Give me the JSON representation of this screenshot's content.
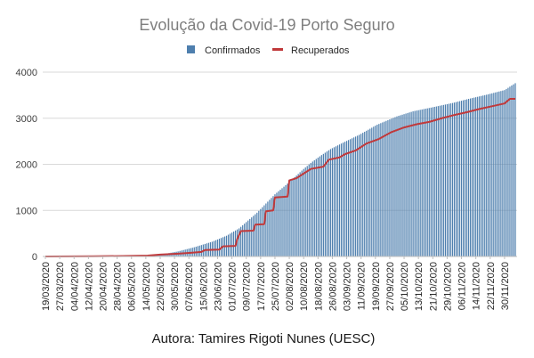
{
  "chart_data": {
    "type": "bar",
    "title": "Evolução da Covid-19 Porto Seguro",
    "legend_position": "top",
    "ylim": [
      0,
      4000
    ],
    "y_ticks": [
      "0",
      "1000",
      "2000",
      "3000",
      "4000"
    ],
    "x_start": "19/03/2020",
    "x_end": "06/12/2020",
    "x_tick_labels": [
      "19/03/2020",
      "27/03/2020",
      "04/04/2020",
      "12/04/2020",
      "20/04/2020",
      "28/04/2020",
      "06/05/2020",
      "14/05/2020",
      "22/05/2020",
      "30/05/2020",
      "07/06/2020",
      "15/06/2020",
      "23/06/2020",
      "01/07/2020",
      "09/07/2020",
      "17/07/2020",
      "25/07/2020",
      "02/08/2020",
      "10/08/2020",
      "18/08/2020",
      "26/08/2020",
      "03/09/2020",
      "11/09/2020",
      "19/09/2020",
      "27/09/2020",
      "05/10/2020",
      "13/10/2020",
      "21/10/2020",
      "29/10/2020",
      "06/11/2020",
      "14/11/2020",
      "22/11/2020",
      "30/11/2020"
    ],
    "series": [
      {
        "name": "Confirmados",
        "kind": "bar",
        "color": "#4e7fae",
        "points": [
          [
            "19/03/2020",
            0
          ],
          [
            "15/04/2020",
            3
          ],
          [
            "01/05/2020",
            10
          ],
          [
            "15/05/2020",
            30
          ],
          [
            "25/05/2020",
            60
          ],
          [
            "01/06/2020",
            110
          ],
          [
            "10/06/2020",
            200
          ],
          [
            "20/06/2020",
            320
          ],
          [
            "28/06/2020",
            450
          ],
          [
            "05/07/2020",
            610
          ],
          [
            "10/07/2020",
            780
          ],
          [
            "15/07/2020",
            950
          ],
          [
            "20/07/2020",
            1150
          ],
          [
            "25/07/2020",
            1350
          ],
          [
            "01/08/2020",
            1580
          ],
          [
            "05/08/2020",
            1720
          ],
          [
            "10/08/2020",
            1900
          ],
          [
            "15/08/2020",
            2060
          ],
          [
            "20/08/2020",
            2200
          ],
          [
            "25/08/2020",
            2330
          ],
          [
            "01/09/2020",
            2470
          ],
          [
            "10/09/2020",
            2640
          ],
          [
            "20/09/2020",
            2860
          ],
          [
            "01/10/2020",
            3040
          ],
          [
            "10/10/2020",
            3150
          ],
          [
            "20/10/2020",
            3230
          ],
          [
            "01/11/2020",
            3330
          ],
          [
            "10/11/2020",
            3420
          ],
          [
            "20/11/2020",
            3510
          ],
          [
            "30/11/2020",
            3610
          ],
          [
            "06/12/2020",
            3760
          ]
        ]
      },
      {
        "name": "Recuperados",
        "kind": "line",
        "color": "#c0393b",
        "points": [
          [
            "19/03/2020",
            0
          ],
          [
            "15/04/2020",
            5
          ],
          [
            "01/05/2020",
            10
          ],
          [
            "15/05/2020",
            20
          ],
          [
            "22/05/2020",
            40
          ],
          [
            "01/06/2020",
            60
          ],
          [
            "08/06/2020",
            80
          ],
          [
            "14/06/2020",
            100
          ],
          [
            "16/06/2020",
            140
          ],
          [
            "24/06/2020",
            150
          ],
          [
            "26/06/2020",
            220
          ],
          [
            "03/07/2020",
            230
          ],
          [
            "04/07/2020",
            380
          ],
          [
            "06/07/2020",
            550
          ],
          [
            "13/07/2020",
            560
          ],
          [
            "14/07/2020",
            690
          ],
          [
            "19/07/2020",
            700
          ],
          [
            "20/07/2020",
            980
          ],
          [
            "24/07/2020",
            1000
          ],
          [
            "25/07/2020",
            1280
          ],
          [
            "01/08/2020",
            1300
          ],
          [
            "02/08/2020",
            1650
          ],
          [
            "06/08/2020",
            1700
          ],
          [
            "10/08/2020",
            1800
          ],
          [
            "14/08/2020",
            1900
          ],
          [
            "21/08/2020",
            1950
          ],
          [
            "24/08/2020",
            2100
          ],
          [
            "30/08/2020",
            2150
          ],
          [
            "02/09/2020",
            2220
          ],
          [
            "08/09/2020",
            2300
          ],
          [
            "14/09/2020",
            2450
          ],
          [
            "21/09/2020",
            2550
          ],
          [
            "28/09/2020",
            2700
          ],
          [
            "05/10/2020",
            2800
          ],
          [
            "12/10/2020",
            2870
          ],
          [
            "19/10/2020",
            2920
          ],
          [
            "26/10/2020",
            3000
          ],
          [
            "02/11/2020",
            3070
          ],
          [
            "09/11/2020",
            3130
          ],
          [
            "16/11/2020",
            3200
          ],
          [
            "23/11/2020",
            3260
          ],
          [
            "30/11/2020",
            3320
          ],
          [
            "03/12/2020",
            3420
          ],
          [
            "06/12/2020",
            3420
          ]
        ]
      }
    ],
    "caption": "Autora: Tamires Rigoti Nunes (UESC)"
  }
}
